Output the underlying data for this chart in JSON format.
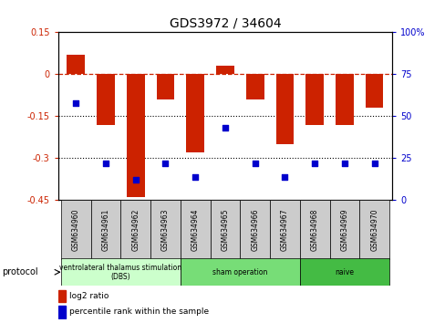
{
  "title": "GDS3972 / 34604",
  "samples": [
    "GSM634960",
    "GSM634961",
    "GSM634962",
    "GSM634963",
    "GSM634964",
    "GSM634965",
    "GSM634966",
    "GSM634967",
    "GSM634968",
    "GSM634969",
    "GSM634970"
  ],
  "log2_ratio": [
    0.07,
    -0.18,
    -0.44,
    -0.09,
    -0.28,
    0.03,
    -0.09,
    -0.25,
    -0.18,
    -0.18,
    -0.12
  ],
  "percentile_rank": [
    58,
    22,
    12,
    22,
    14,
    43,
    22,
    14,
    22,
    22,
    22
  ],
  "ylim_left": [
    -0.45,
    0.15
  ],
  "ylim_right": [
    0,
    100
  ],
  "yticks_left": [
    0.15,
    0.0,
    -0.15,
    -0.3,
    -0.45
  ],
  "yticks_right": [
    100,
    75,
    50,
    25,
    0
  ],
  "bar_color": "#cc2200",
  "dot_color": "#0000cc",
  "zero_line_color": "#cc2200",
  "grid_color": "#000000",
  "protocol_groups": [
    {
      "label": "ventrolateral thalamus stimulation\n(DBS)",
      "start": 0,
      "end": 3,
      "color": "#ccffcc"
    },
    {
      "label": "sham operation",
      "start": 4,
      "end": 7,
      "color": "#77dd77"
    },
    {
      "label": "naive",
      "start": 8,
      "end": 10,
      "color": "#44bb44"
    }
  ],
  "legend_bar_label": "log2 ratio",
  "legend_dot_label": "percentile rank within the sample",
  "protocol_label": "protocol"
}
